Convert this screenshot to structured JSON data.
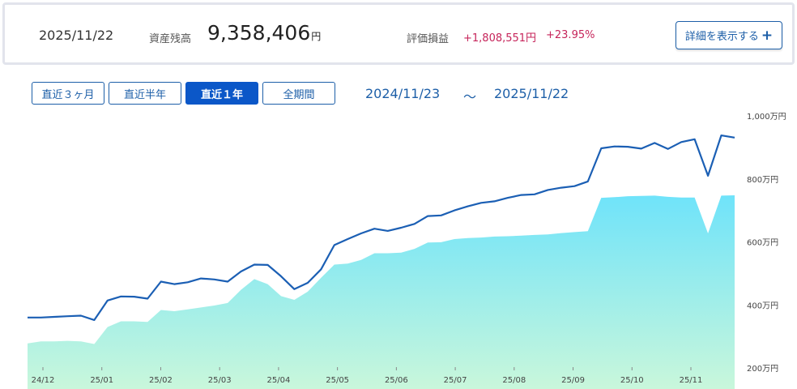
{
  "summary": {
    "date": "2025/11/22",
    "balance_label": "資産残高",
    "balance_value": "9,358,406",
    "balance_unit": "円",
    "pl_label": "評価損益",
    "pl_value": "+1,808,551円",
    "pl_percent": "+23.95%",
    "detail_button_label": "詳細を表示する",
    "detail_button_icon": "plus-icon"
  },
  "period": {
    "buttons": [
      "直近３ヶ月",
      "直近半年",
      "直近１年",
      "全期間"
    ],
    "active": "直近１年",
    "range_start": "2024/11/23",
    "range_sep": "～",
    "range_end": "2025/11/22"
  },
  "colors": {
    "line": "#1b5fb4",
    "area_top": "#6fe3fa",
    "area_bottom": "#c9f7db",
    "accent": "#0b57c8",
    "profit": "#c6245a"
  },
  "chart_data": {
    "type": "area",
    "x_tick_labels": [
      "24/12",
      "25/01",
      "25/02",
      "25/03",
      "25/04",
      "25/05",
      "25/06",
      "25/07",
      "25/08",
      "25/09",
      "25/10",
      "25/11"
    ],
    "y_tick_labels": [
      "1,000万円",
      "800万円",
      "600万円",
      "400万円",
      "200万円"
    ],
    "y_unit": "万円",
    "ylim": [
      200,
      1000
    ],
    "grid": false,
    "series": [
      {
        "role": "line",
        "values": [
          360,
          360,
          362,
          364,
          366,
          352,
          414,
          427,
          426,
          420,
          474,
          466,
          472,
          484,
          481,
          474,
          506,
          528,
          527,
          491,
          450,
          470,
          513,
          590,
          609,
          627,
          642,
          635,
          645,
          657,
          682,
          684,
          700,
          713,
          724,
          729,
          740,
          749,
          751,
          765,
          772,
          777,
          792,
          897,
          903,
          902,
          896,
          914,
          895,
          917,
          926,
          810,
          938,
          931
        ]
      },
      {
        "role": "area",
        "values": [
          278,
          284,
          284,
          286,
          284,
          276,
          330,
          348,
          348,
          346,
          384,
          380,
          386,
          392,
          398,
          406,
          448,
          482,
          466,
          428,
          416,
          442,
          486,
          528,
          531,
          543,
          564,
          564,
          566,
          578,
          598,
          599,
          609,
          612,
          614,
          617,
          618,
          620,
          622,
          624,
          628,
          631,
          634,
          740,
          742,
          745,
          746,
          747,
          743,
          741,
          741,
          627,
          747,
          748
        ]
      }
    ]
  }
}
